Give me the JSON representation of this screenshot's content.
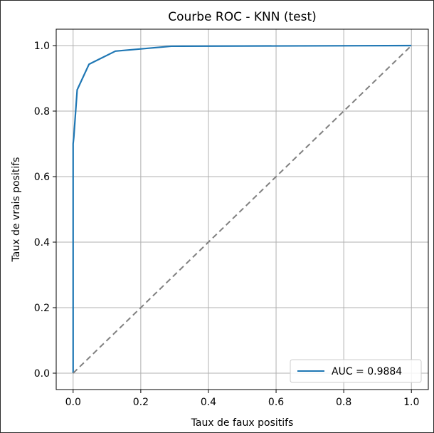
{
  "chart_data": {
    "type": "line",
    "title": "Courbe ROC - KNN (test)",
    "xlabel": "Taux de faux positifs",
    "ylabel": "Taux de vrais positifs",
    "xlim": [
      -0.05,
      1.05
    ],
    "ylim": [
      -0.05,
      1.05
    ],
    "xticks": [
      0.0,
      0.2,
      0.4,
      0.6,
      0.8,
      1.0
    ],
    "yticks": [
      0.0,
      0.2,
      0.4,
      0.6,
      0.8,
      1.0
    ],
    "xtick_labels": [
      "0.0",
      "0.2",
      "0.4",
      "0.6",
      "0.8",
      "1.0"
    ],
    "ytick_labels": [
      "0.0",
      "0.2",
      "0.4",
      "0.6",
      "0.8",
      "1.0"
    ],
    "grid": true,
    "legend_position": "lower-right",
    "legend_label": "AUC = 0.9884",
    "series": [
      {
        "name": "AUC = 0.9884",
        "color": "#1f77b4",
        "style": "solid",
        "x": [
          0.0,
          0.0,
          0.002,
          0.012,
          0.047,
          0.125,
          0.29,
          1.0
        ],
        "y": [
          0.0,
          0.7,
          0.72,
          0.865,
          0.943,
          0.983,
          0.998,
          1.0
        ]
      },
      {
        "name": "",
        "color": "#808080",
        "style": "dashed",
        "x": [
          0.0,
          1.0
        ],
        "y": [
          0.0,
          1.0
        ]
      }
    ]
  }
}
